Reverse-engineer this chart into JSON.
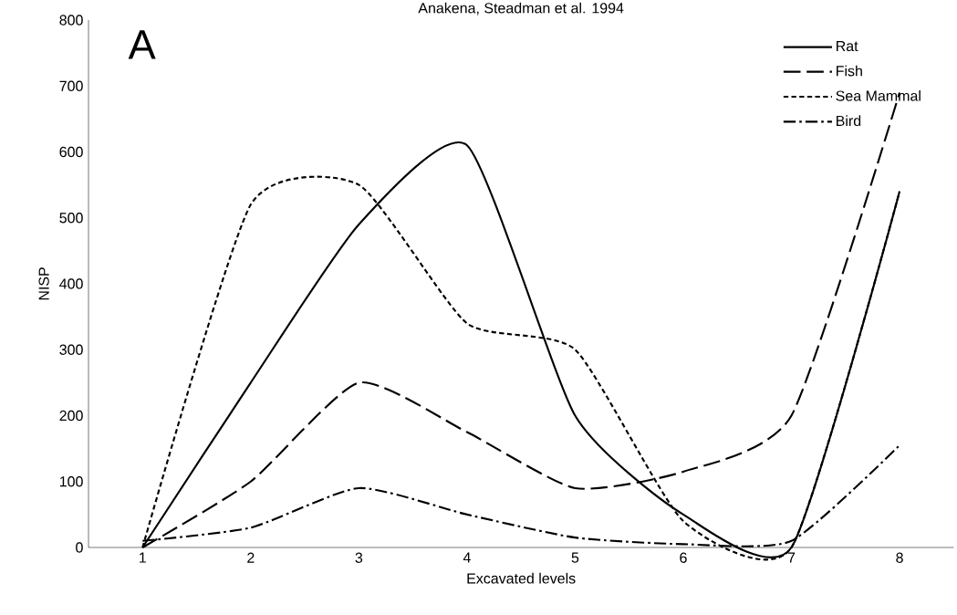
{
  "chart_data": {
    "type": "line",
    "title": "Anakena, Steadman et al. 1994",
    "xlabel": "Excavated levels",
    "ylabel": "NISP",
    "annotations": [
      "A"
    ],
    "categories": [
      "1",
      "2",
      "3",
      "4",
      "5",
      "6",
      "7",
      "8"
    ],
    "series": [
      {
        "name": "Rat",
        "color": "#000000",
        "line_style": "solid",
        "values": [
          0,
          250,
          490,
          610,
          200,
          50,
          0,
          540
        ]
      },
      {
        "name": "Fish",
        "color": "#000000",
        "line_style": "dashed",
        "values": [
          0,
          100,
          250,
          175,
          90,
          115,
          200,
          690
        ]
      },
      {
        "name": "Sea Mammal",
        "color": "#000000",
        "line_style": "dotted",
        "values": [
          0,
          520,
          550,
          340,
          300,
          40,
          0,
          540
        ]
      },
      {
        "name": "Bird",
        "color": "#000000",
        "line_style": "dashdot",
        "values": [
          10,
          30,
          90,
          50,
          15,
          5,
          10,
          155
        ]
      }
    ],
    "ylim": [
      0,
      800
    ],
    "yticks": [
      0,
      100,
      200,
      300,
      400,
      500,
      600,
      700,
      800
    ],
    "grid": false,
    "legend": "top right",
    "marker": "none"
  }
}
